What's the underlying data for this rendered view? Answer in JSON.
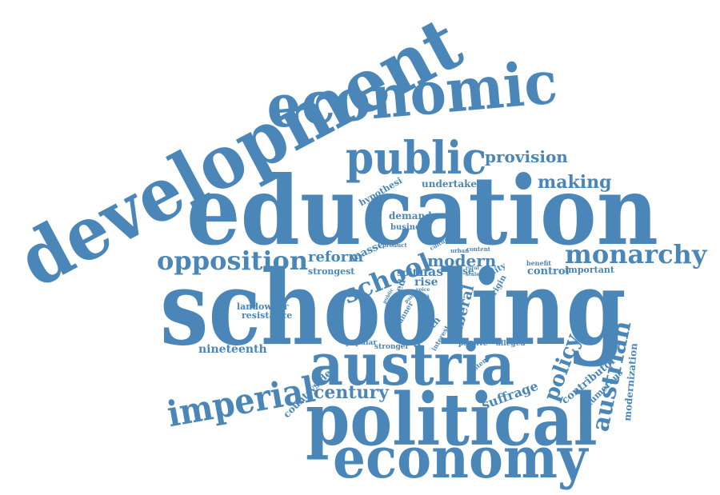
{
  "color": "#4a86b8",
  "words": {
    "development": "development",
    "economic": "economic",
    "public": "public",
    "provision": "provision",
    "making": "making",
    "undertaken": "undertaken",
    "hypothesi": "hypothesi",
    "education": "education",
    "demand": "demand",
    "business": "business",
    "opposition": "opposition",
    "reform": "reform",
    "masse": "masse",
    "strongest": "strongest",
    "school": "school",
    "modern": "modern",
    "monarchy": "monarchy",
    "mas": "mas",
    "spite": "spite",
    "case": "case",
    "reality": "reality",
    "cultural": "cultural",
    "urban": "urban",
    "content": "content",
    "benefit": "benefit",
    "important": "important",
    "control": "control",
    "rise": "rise",
    "origin": "origin",
    "schooling": "schooling",
    "landowner": "landowner",
    "resistance": "resistance",
    "gained": "gained",
    "manner": "manner",
    "liberal": "liberal",
    "matter": "matter",
    "nineteenth": "nineteenth",
    "popular": "popular",
    "stronger": "stronger",
    "growth": "growth",
    "interest": "interest",
    "passive": "passive",
    "alleged": "alleged",
    "system": "system",
    "policy": "policy",
    "contributor": "contributor",
    "numerous": "numerous",
    "austrian": "austrian",
    "modernization": "modernization",
    "imperial": "imperial",
    "austria": "austria",
    "countryside": "countryside",
    "century": "century",
    "suffrage": "suffrage",
    "political": "political",
    "economy": "economy",
    "voice": "voice",
    "area": "area",
    "paid": "paid",
    "public2": "public",
    "rural": "rural",
    "scale": "scale",
    "product": "product"
  }
}
